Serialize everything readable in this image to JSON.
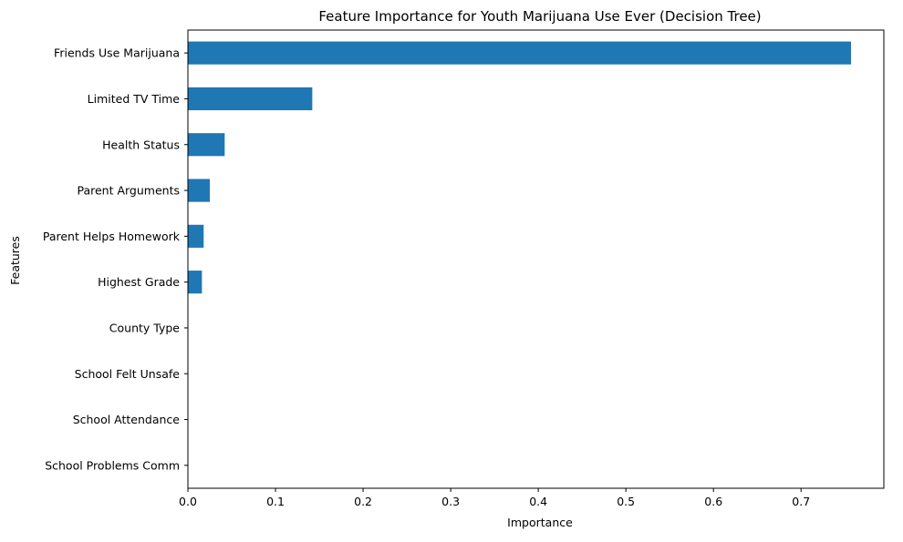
{
  "chart_data": {
    "type": "bar",
    "orientation": "horizontal",
    "title": "Feature Importance for Youth Marijuana Use Ever (Decision Tree)",
    "xlabel": "Importance",
    "ylabel": "Features",
    "categories": [
      "Friends Use Marijuana",
      "Limited TV Time",
      "Health Status",
      "Parent Arguments",
      "Parent Helps Homework",
      "Highest Grade",
      "County Type",
      "School Felt Unsafe",
      "School Attendance",
      "School Problems Comm"
    ],
    "values": [
      0.757,
      0.142,
      0.042,
      0.025,
      0.018,
      0.016,
      0.0,
      0.0,
      0.0,
      0.0
    ],
    "xlim": [
      0,
      0.7945
    ],
    "xticks": [
      0,
      0.1,
      0.2,
      0.3,
      0.4,
      0.5,
      0.6,
      0.7
    ],
    "xtick_labels": [
      "0.0",
      "0.1",
      "0.2",
      "0.3",
      "0.4",
      "0.5",
      "0.6",
      "0.7"
    ],
    "bar_color": "#1f77b4",
    "grid": false,
    "legend": "none"
  }
}
